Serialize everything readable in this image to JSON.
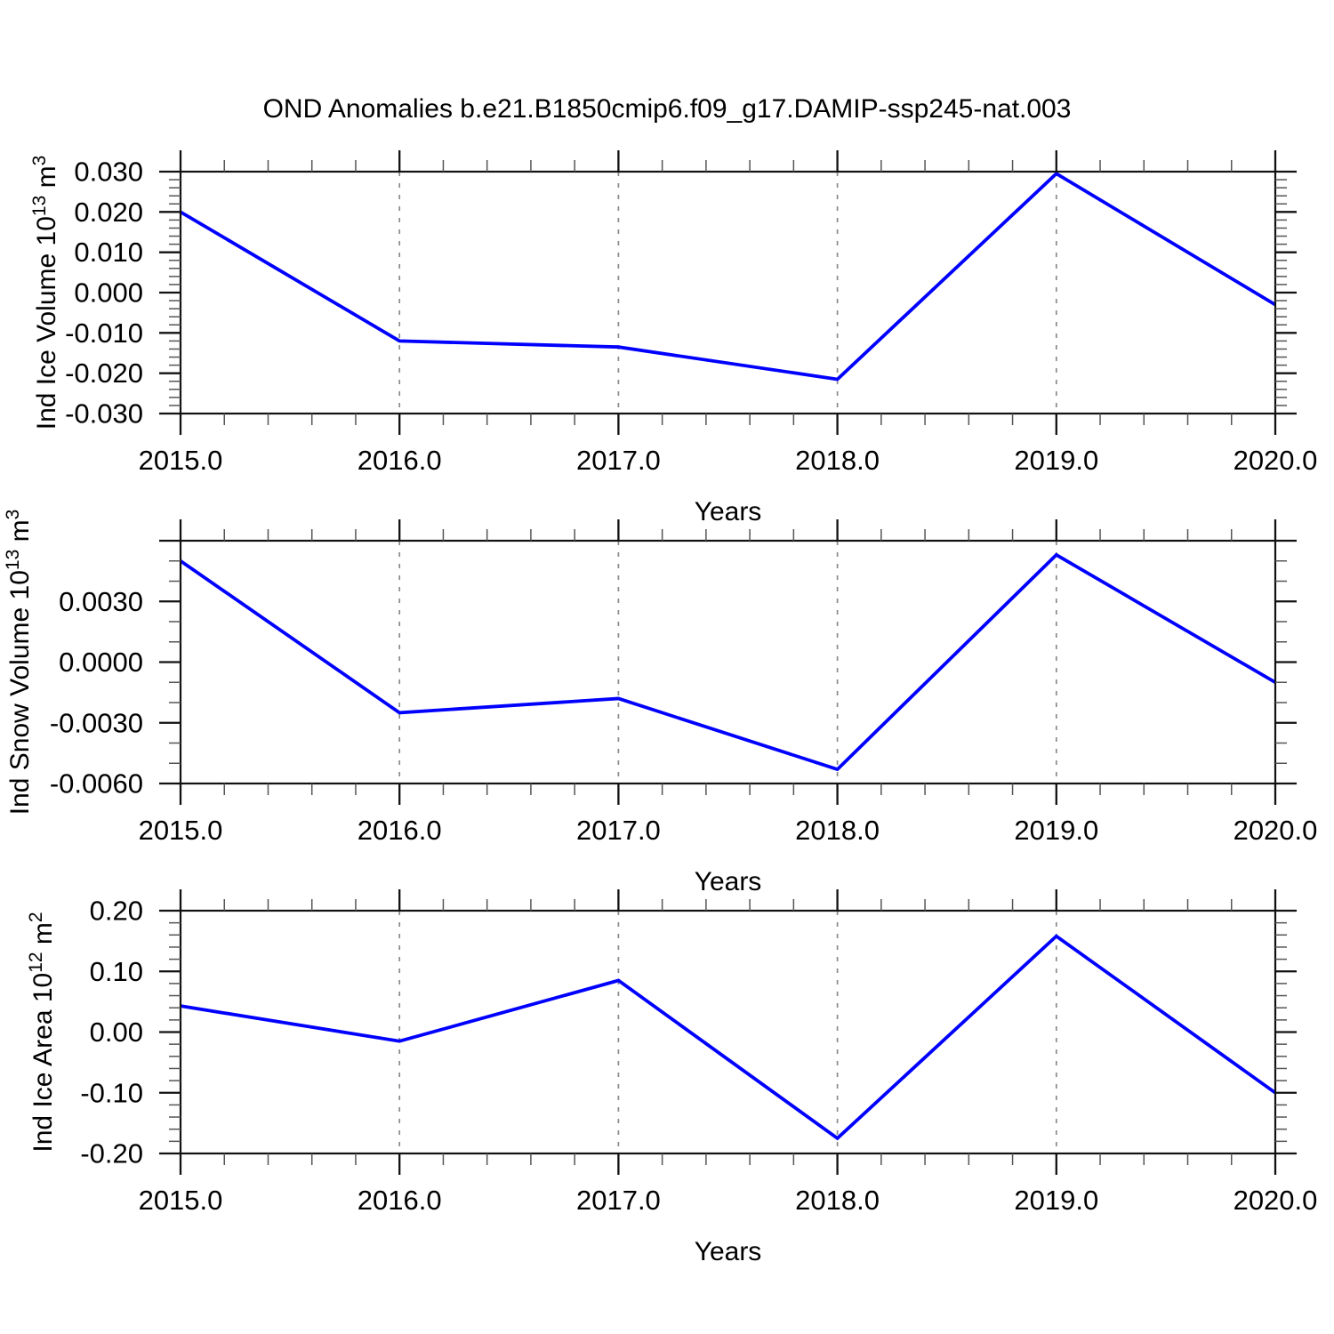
{
  "title": "OND Anomalies b.e21.B1850cmip6.f09_g17.DAMIP-ssp245-nat.003",
  "colors": {
    "line": "#0000ff",
    "grid": "#8a8a8a",
    "axis": "#111111",
    "minor_tick": "#555555",
    "text": "#000000",
    "background": "#ffffff"
  },
  "x_axis": {
    "label": "Years",
    "min": 2015.0,
    "max": 2020.0,
    "major_ticks": [
      {
        "value": 2015.0,
        "label": "2015.0"
      },
      {
        "value": 2016.0,
        "label": "2016.0"
      },
      {
        "value": 2017.0,
        "label": "2017.0"
      },
      {
        "value": 2018.0,
        "label": "2018.0"
      },
      {
        "value": 2019.0,
        "label": "2019.0"
      },
      {
        "value": 2020.0,
        "label": "2020.0"
      }
    ],
    "minor_step": 0.2,
    "dashed_grid_lines": [
      2016.0,
      2017.0,
      2018.0,
      2019.0
    ]
  },
  "chart_data": [
    {
      "type": "line",
      "name": "ind-ice-volume",
      "ylabel_text": "Ind Ice Volume 10^13 m^3",
      "ylabel_segments": [
        {
          "t": "Ind Ice Volume 10"
        },
        {
          "t": "13",
          "sup": true
        },
        {
          "t": " m"
        },
        {
          "t": "3",
          "sup": true
        }
      ],
      "x": [
        2015.0,
        2016.0,
        2017.0,
        2018.0,
        2019.0,
        2020.0
      ],
      "values": [
        0.02,
        -0.012,
        -0.0135,
        -0.0215,
        0.0295,
        -0.003
      ],
      "ylim": [
        -0.03,
        0.03
      ],
      "y_major_ticks": [
        {
          "value": 0.03,
          "label": "0.030"
        },
        {
          "value": 0.02,
          "label": "0.020"
        },
        {
          "value": 0.01,
          "label": "0.010"
        },
        {
          "value": 0.0,
          "label": "0.000"
        },
        {
          "value": -0.01,
          "label": "-0.010"
        },
        {
          "value": -0.02,
          "label": "-0.020"
        },
        {
          "value": -0.03,
          "label": "-0.030"
        }
      ],
      "y_minor_step": 0.002,
      "grid": "vertical-dashed-only",
      "legend": "none"
    },
    {
      "type": "line",
      "name": "ind-snow-volume",
      "ylabel_text": "Ind Snow Volume 10^13 m^3",
      "ylabel_segments": [
        {
          "t": "Ind Snow Volume 10"
        },
        {
          "t": "13",
          "sup": true
        },
        {
          "t": " m"
        },
        {
          "t": "3",
          "sup": true
        }
      ],
      "x": [
        2015.0,
        2016.0,
        2017.0,
        2018.0,
        2019.0,
        2020.0
      ],
      "values": [
        0.005,
        -0.0025,
        -0.0018,
        -0.0053,
        0.0053,
        -0.001
      ],
      "ylim": [
        -0.006,
        0.006
      ],
      "y_major_ticks": [
        {
          "value": 0.006,
          "label": ""
        },
        {
          "value": 0.003,
          "label": "0.0030"
        },
        {
          "value": 0.0,
          "label": "0.0000"
        },
        {
          "value": -0.003,
          "label": "-0.0030"
        },
        {
          "value": -0.006,
          "label": "-0.0060"
        }
      ],
      "y_minor_step": 0.001,
      "grid": "vertical-dashed-only",
      "legend": "none"
    },
    {
      "type": "line",
      "name": "ind-ice-area",
      "ylabel_text": "Ind Ice Area 10^12 m^2",
      "ylabel_segments": [
        {
          "t": "Ind Ice Area 10"
        },
        {
          "t": "12",
          "sup": true
        },
        {
          "t": " m"
        },
        {
          "t": "2",
          "sup": true
        }
      ],
      "x": [
        2015.0,
        2016.0,
        2017.0,
        2018.0,
        2019.0,
        2020.0
      ],
      "values": [
        0.043,
        -0.015,
        0.085,
        -0.175,
        0.158,
        -0.1
      ],
      "ylim": [
        -0.2,
        0.2
      ],
      "y_major_ticks": [
        {
          "value": 0.2,
          "label": "0.20"
        },
        {
          "value": 0.1,
          "label": "0.10"
        },
        {
          "value": 0.0,
          "label": "0.00"
        },
        {
          "value": -0.1,
          "label": "-0.10"
        },
        {
          "value": -0.2,
          "label": "-0.20"
        }
      ],
      "y_minor_step": 0.02,
      "grid": "vertical-dashed-only",
      "legend": "none"
    }
  ]
}
